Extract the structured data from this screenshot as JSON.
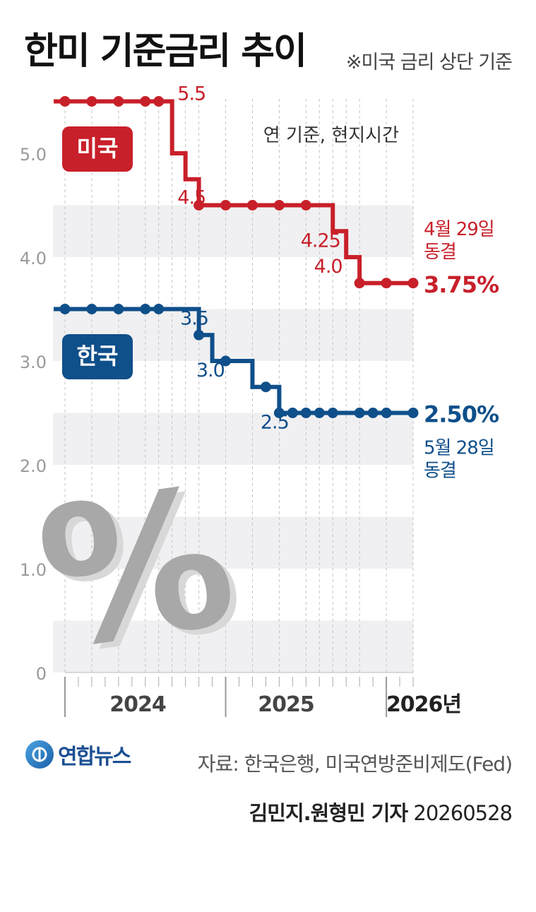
{
  "header": {
    "title": "한미 기준금리 추이",
    "note": "※미국 금리 상단 기준"
  },
  "chart_data": {
    "type": "line",
    "step": true,
    "ylim": [
      0,
      5.5
    ],
    "y_ticks": [
      "0",
      "1.0",
      "2.0",
      "3.0",
      "4.0",
      "5.0"
    ],
    "x_ticks": [
      "2024",
      "2025",
      "2026년"
    ],
    "time_note": "연 기준, 현지시간",
    "series": [
      {
        "name": "미국",
        "color": "#c8202a",
        "x": [
          0,
          1,
          2,
          3,
          3.5,
          4,
          4.5,
          5,
          6,
          7,
          8,
          9,
          9.5,
          10,
          10.5,
          11,
          12,
          13
        ],
        "y": [
          5.5,
          5.5,
          5.5,
          5.5,
          5.5,
          5.0,
          4.75,
          4.5,
          4.5,
          4.5,
          4.5,
          4.5,
          4.5,
          4.25,
          4.0,
          3.75,
          3.75,
          3.75
        ],
        "dot_indices": [
          0,
          1,
          2,
          3,
          4,
          7,
          8,
          9,
          10,
          11,
          15,
          16,
          17
        ],
        "labels": [
          {
            "text": "5.5",
            "x": 4.2,
            "y": 5.5
          },
          {
            "text": "4.5",
            "x": 4.2,
            "y": 4.5
          },
          {
            "text": "4.25",
            "x": 8.8,
            "y": 4.25
          },
          {
            "text": "4.0",
            "x": 9.3,
            "y": 4.0
          }
        ],
        "final_value": "3.75%",
        "final_note": [
          "4월 29일",
          "동결"
        ]
      },
      {
        "name": "한국",
        "color": "#0f4f8a",
        "x": [
          0,
          1,
          2,
          3,
          3.5,
          4.5,
          5,
          5.5,
          6,
          7,
          7.5,
          8,
          8.5,
          9,
          9.5,
          10,
          11,
          11.5,
          12,
          13
        ],
        "y": [
          3.5,
          3.5,
          3.5,
          3.5,
          3.5,
          3.5,
          3.25,
          3.0,
          3.0,
          2.75,
          2.75,
          2.5,
          2.5,
          2.5,
          2.5,
          2.5,
          2.5,
          2.5,
          2.5,
          2.5
        ],
        "dot_indices": [
          0,
          1,
          2,
          3,
          4,
          6,
          8,
          10,
          11,
          12,
          13,
          14,
          15,
          16,
          17,
          18,
          19
        ],
        "labels": [
          {
            "text": "3.5",
            "x": 4.3,
            "y": 3.5
          },
          {
            "text": "3.0",
            "x": 4.9,
            "y": 3.0
          },
          {
            "text": "2.5",
            "x": 7.3,
            "y": 2.5
          }
        ],
        "final_value": "2.50%",
        "final_note": [
          "5월 28일",
          "동결"
        ]
      }
    ]
  },
  "footer": {
    "logo": "연합뉴스",
    "source": "자료: 한국은행, 미국연방준비제도(Fed)",
    "reporters": "김민지.원형민 기자",
    "date": "20260528"
  }
}
